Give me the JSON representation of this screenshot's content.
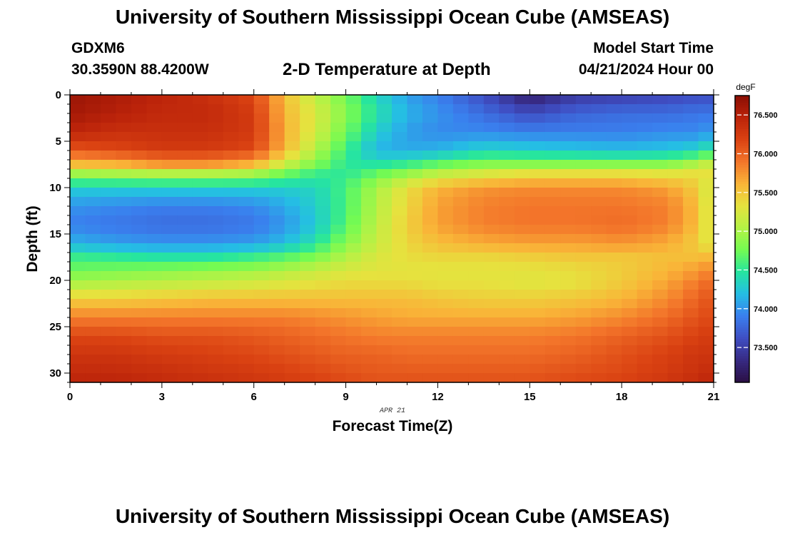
{
  "header": {
    "title": "University of Southern Mississippi Ocean Cube (AMSEAS)",
    "station": "GDXM6",
    "coords": "30.3590N  88.4200W",
    "plot_title": "2-D Temperature at Depth",
    "model_start_label": "Model Start Time",
    "model_start_value": "04/21/2024 Hour 00"
  },
  "footer": {
    "title": "University of Southern Mississippi Ocean Cube (AMSEAS)"
  },
  "chart_data": {
    "type": "heatmap",
    "title": "2-D Temperature at Depth",
    "xlabel": "Forecast Time(Z)",
    "ylabel": "Depth (ft)",
    "x_sublabel": "APR 21",
    "xlim": [
      0,
      21
    ],
    "ylim": [
      31,
      0
    ],
    "x_ticks": [
      0,
      3,
      6,
      9,
      12,
      15,
      18,
      21
    ],
    "y_ticks": [
      0,
      5,
      10,
      15,
      20,
      25,
      30
    ],
    "colorbar": {
      "label": "degF",
      "range": [
        73.05,
        76.75
      ],
      "ticks": [
        "73.500",
        "74.000",
        "74.500",
        "75.000",
        "75.500",
        "76.000",
        "76.500"
      ],
      "tick_values": [
        73.5,
        74.0,
        74.5,
        75.0,
        75.5,
        76.0,
        76.5
      ],
      "colors": [
        "#2a0f44",
        "#372a83",
        "#3f4ec3",
        "#3a7fee",
        "#25bde5",
        "#26e59f",
        "#74fb52",
        "#b4f245",
        "#e6e23e",
        "#f9b438",
        "#f3752a",
        "#da4212",
        "#bb230a",
        "#8a0e04"
      ]
    },
    "grid": {
      "nx": 42,
      "ny": 31,
      "dx": 0.5,
      "dy": 1,
      "x_key_hours": [
        0,
        1.5,
        3,
        4.5,
        6,
        7,
        8,
        9,
        10,
        11,
        12,
        13.5,
        15,
        16.5,
        18,
        19.5,
        20.5,
        21
      ],
      "y_key_depths": [
        0,
        2,
        4,
        6,
        7.5,
        8.5,
        10,
        12,
        14,
        16,
        17.5,
        19,
        20.5,
        22,
        24,
        26,
        28,
        30,
        31
      ],
      "key_values_degF": [
        [
          76.65,
          76.55,
          76.45,
          76.35,
          76.15,
          75.55,
          75.1,
          74.75,
          74.35,
          74.05,
          73.9,
          73.6,
          73.2,
          73.45,
          73.5,
          73.55,
          73.6,
          73.6
        ],
        [
          76.6,
          76.5,
          76.4,
          76.4,
          76.25,
          75.6,
          75.25,
          74.85,
          74.45,
          74.15,
          74.0,
          73.8,
          73.6,
          73.75,
          73.8,
          73.8,
          73.85,
          73.85
        ],
        [
          76.45,
          76.35,
          76.35,
          76.35,
          76.25,
          75.65,
          75.2,
          74.75,
          74.3,
          74.05,
          73.95,
          73.95,
          73.9,
          73.9,
          73.9,
          73.95,
          73.95,
          74.05
        ],
        [
          76.05,
          76.15,
          76.25,
          76.25,
          76.15,
          75.6,
          75.05,
          74.55,
          74.15,
          74.1,
          74.15,
          74.35,
          74.3,
          74.25,
          74.2,
          74.25,
          74.35,
          74.55
        ],
        [
          75.55,
          75.6,
          75.75,
          75.75,
          75.6,
          75.15,
          74.8,
          74.5,
          74.45,
          74.55,
          74.7,
          74.85,
          74.85,
          74.85,
          74.85,
          74.85,
          75.05,
          75.2
        ],
        [
          74.95,
          75.0,
          75.05,
          75.05,
          75.0,
          74.75,
          74.55,
          74.5,
          74.7,
          74.9,
          75.1,
          75.25,
          75.35,
          75.35,
          75.35,
          75.3,
          75.35,
          75.3
        ],
        [
          74.3,
          74.3,
          74.3,
          74.3,
          74.3,
          74.3,
          74.35,
          74.6,
          75.0,
          75.35,
          75.6,
          75.75,
          75.8,
          75.8,
          75.8,
          75.7,
          75.45,
          75.1
        ],
        [
          74.0,
          73.95,
          73.9,
          73.9,
          73.95,
          74.1,
          74.3,
          74.6,
          75.05,
          75.4,
          75.7,
          75.85,
          75.9,
          75.9,
          75.9,
          75.85,
          75.55,
          75.1
        ],
        [
          73.9,
          73.85,
          73.8,
          73.8,
          73.85,
          74.0,
          74.25,
          74.65,
          75.1,
          75.45,
          75.7,
          75.85,
          75.9,
          75.9,
          75.95,
          75.85,
          75.55,
          75.1
        ],
        [
          74.15,
          74.05,
          74.0,
          74.0,
          74.05,
          74.2,
          74.45,
          74.85,
          75.15,
          75.4,
          75.55,
          75.65,
          75.7,
          75.7,
          75.75,
          75.65,
          75.45,
          75.2
        ],
        [
          74.55,
          74.5,
          74.45,
          74.45,
          74.55,
          74.65,
          74.8,
          75.05,
          75.25,
          75.35,
          75.4,
          75.4,
          75.45,
          75.5,
          75.5,
          75.55,
          75.55,
          75.6
        ],
        [
          74.75,
          74.8,
          74.85,
          74.9,
          74.95,
          75.05,
          75.15,
          75.25,
          75.3,
          75.3,
          75.3,
          75.3,
          75.3,
          75.35,
          75.45,
          75.6,
          75.75,
          75.85
        ],
        [
          75.05,
          75.1,
          75.15,
          75.2,
          75.25,
          75.3,
          75.35,
          75.4,
          75.4,
          75.4,
          75.35,
          75.35,
          75.3,
          75.35,
          75.5,
          75.7,
          75.9,
          76.0
        ],
        [
          75.45,
          75.45,
          75.5,
          75.55,
          75.55,
          75.55,
          75.55,
          75.55,
          75.55,
          75.55,
          75.5,
          75.45,
          75.45,
          75.5,
          75.6,
          75.8,
          76.0,
          76.1
        ],
        [
          75.85,
          75.85,
          75.85,
          75.85,
          75.85,
          75.85,
          75.8,
          75.75,
          75.7,
          75.65,
          75.65,
          75.65,
          75.65,
          75.7,
          75.8,
          75.95,
          76.1,
          76.15
        ],
        [
          76.15,
          76.15,
          76.1,
          76.1,
          76.05,
          76.0,
          75.95,
          75.9,
          75.85,
          75.85,
          75.85,
          75.85,
          75.85,
          75.9,
          76.0,
          76.1,
          76.2,
          76.25
        ],
        [
          76.3,
          76.3,
          76.25,
          76.2,
          76.15,
          76.1,
          76.05,
          76.0,
          76.0,
          75.95,
          75.95,
          75.95,
          75.95,
          76.0,
          76.1,
          76.2,
          76.3,
          76.3
        ],
        [
          76.4,
          76.4,
          76.35,
          76.3,
          76.25,
          76.2,
          76.15,
          76.1,
          76.05,
          76.05,
          76.05,
          76.05,
          76.05,
          76.1,
          76.15,
          76.25,
          76.35,
          76.4
        ],
        [
          76.45,
          76.45,
          76.4,
          76.35,
          76.3,
          76.25,
          76.2,
          76.15,
          76.1,
          76.1,
          76.1,
          76.1,
          76.1,
          76.15,
          76.2,
          76.3,
          76.4,
          76.45
        ]
      ]
    }
  }
}
